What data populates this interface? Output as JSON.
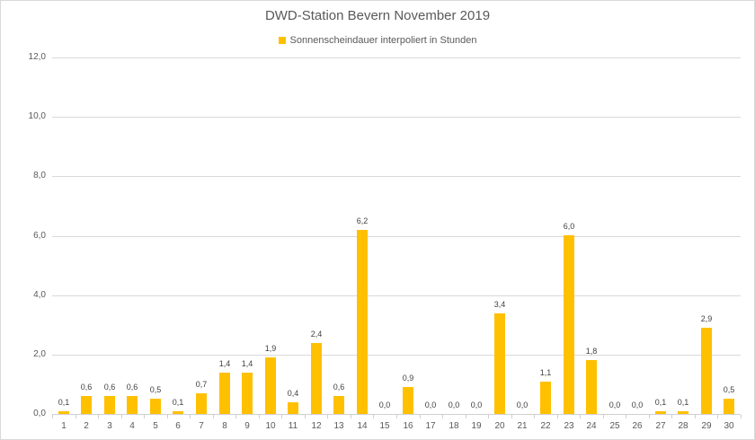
{
  "title": "DWD-Station Bevern November 2019",
  "legend": {
    "label": "Sonnenscheindauer interpoliert in Stunden",
    "marker_color": "#FFC000"
  },
  "colors": {
    "bar": "#FFC000",
    "gridline": "#D9D9D9",
    "axis_line": "#D0D0D0",
    "axis_text": "#595959",
    "data_label_text": "#404040",
    "frame_border": "#D9D9D9",
    "background": "#FFFFFF"
  },
  "chart_data": {
    "type": "bar",
    "title": "DWD-Station Bevern November 2019",
    "series_name": "Sonnenscheindauer interpoliert in Stunden",
    "xlabel": "",
    "ylabel": "",
    "categories": [
      "1",
      "2",
      "3",
      "4",
      "5",
      "6",
      "7",
      "8",
      "9",
      "10",
      "11",
      "12",
      "13",
      "14",
      "15",
      "16",
      "17",
      "18",
      "19",
      "20",
      "21",
      "22",
      "23",
      "24",
      "25",
      "26",
      "27",
      "28",
      "29",
      "30"
    ],
    "values": [
      0.1,
      0.6,
      0.6,
      0.6,
      0.5,
      0.1,
      0.7,
      1.4,
      1.4,
      1.9,
      0.4,
      2.4,
      0.6,
      6.2,
      0.0,
      0.9,
      0.0,
      0.0,
      0.0,
      3.4,
      0.0,
      1.1,
      6.0,
      1.8,
      0.0,
      0.0,
      0.1,
      0.1,
      2.9,
      0.5
    ],
    "value_labels": [
      "0,1",
      "0,6",
      "0,6",
      "0,6",
      "0,5",
      "0,1",
      "0,7",
      "1,4",
      "1,4",
      "1,9",
      "0,4",
      "2,4",
      "0,6",
      "6,2",
      "0,0",
      "0,9",
      "0,0",
      "0,0",
      "0,0",
      "3,4",
      "0,0",
      "1,1",
      "6,0",
      "1,8",
      "0,0",
      "0,0",
      "0,1",
      "0,1",
      "2,9",
      "0,5"
    ],
    "ylim": [
      0,
      12
    ],
    "ytick_values": [
      0,
      2,
      4,
      6,
      8,
      10,
      12
    ],
    "ytick_labels": [
      "0,0",
      "2,0",
      "4,0",
      "6,0",
      "8,0",
      "10,0",
      "12,0"
    ],
    "grid": true,
    "legend_position": "top",
    "bar_color": "#FFC000"
  }
}
